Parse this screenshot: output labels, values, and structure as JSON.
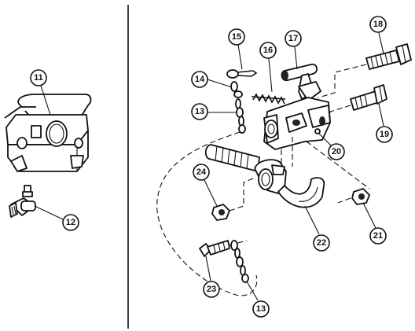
{
  "callouts": {
    "c11": "11",
    "c12": "12",
    "c13a": "13",
    "c13b": "13",
    "c14": "14",
    "c15": "15",
    "c16": "16",
    "c17": "17",
    "c18": "18",
    "c19": "19",
    "c20": "20",
    "c21": "21",
    "c22": "22",
    "c23": "23",
    "c24": "24"
  }
}
